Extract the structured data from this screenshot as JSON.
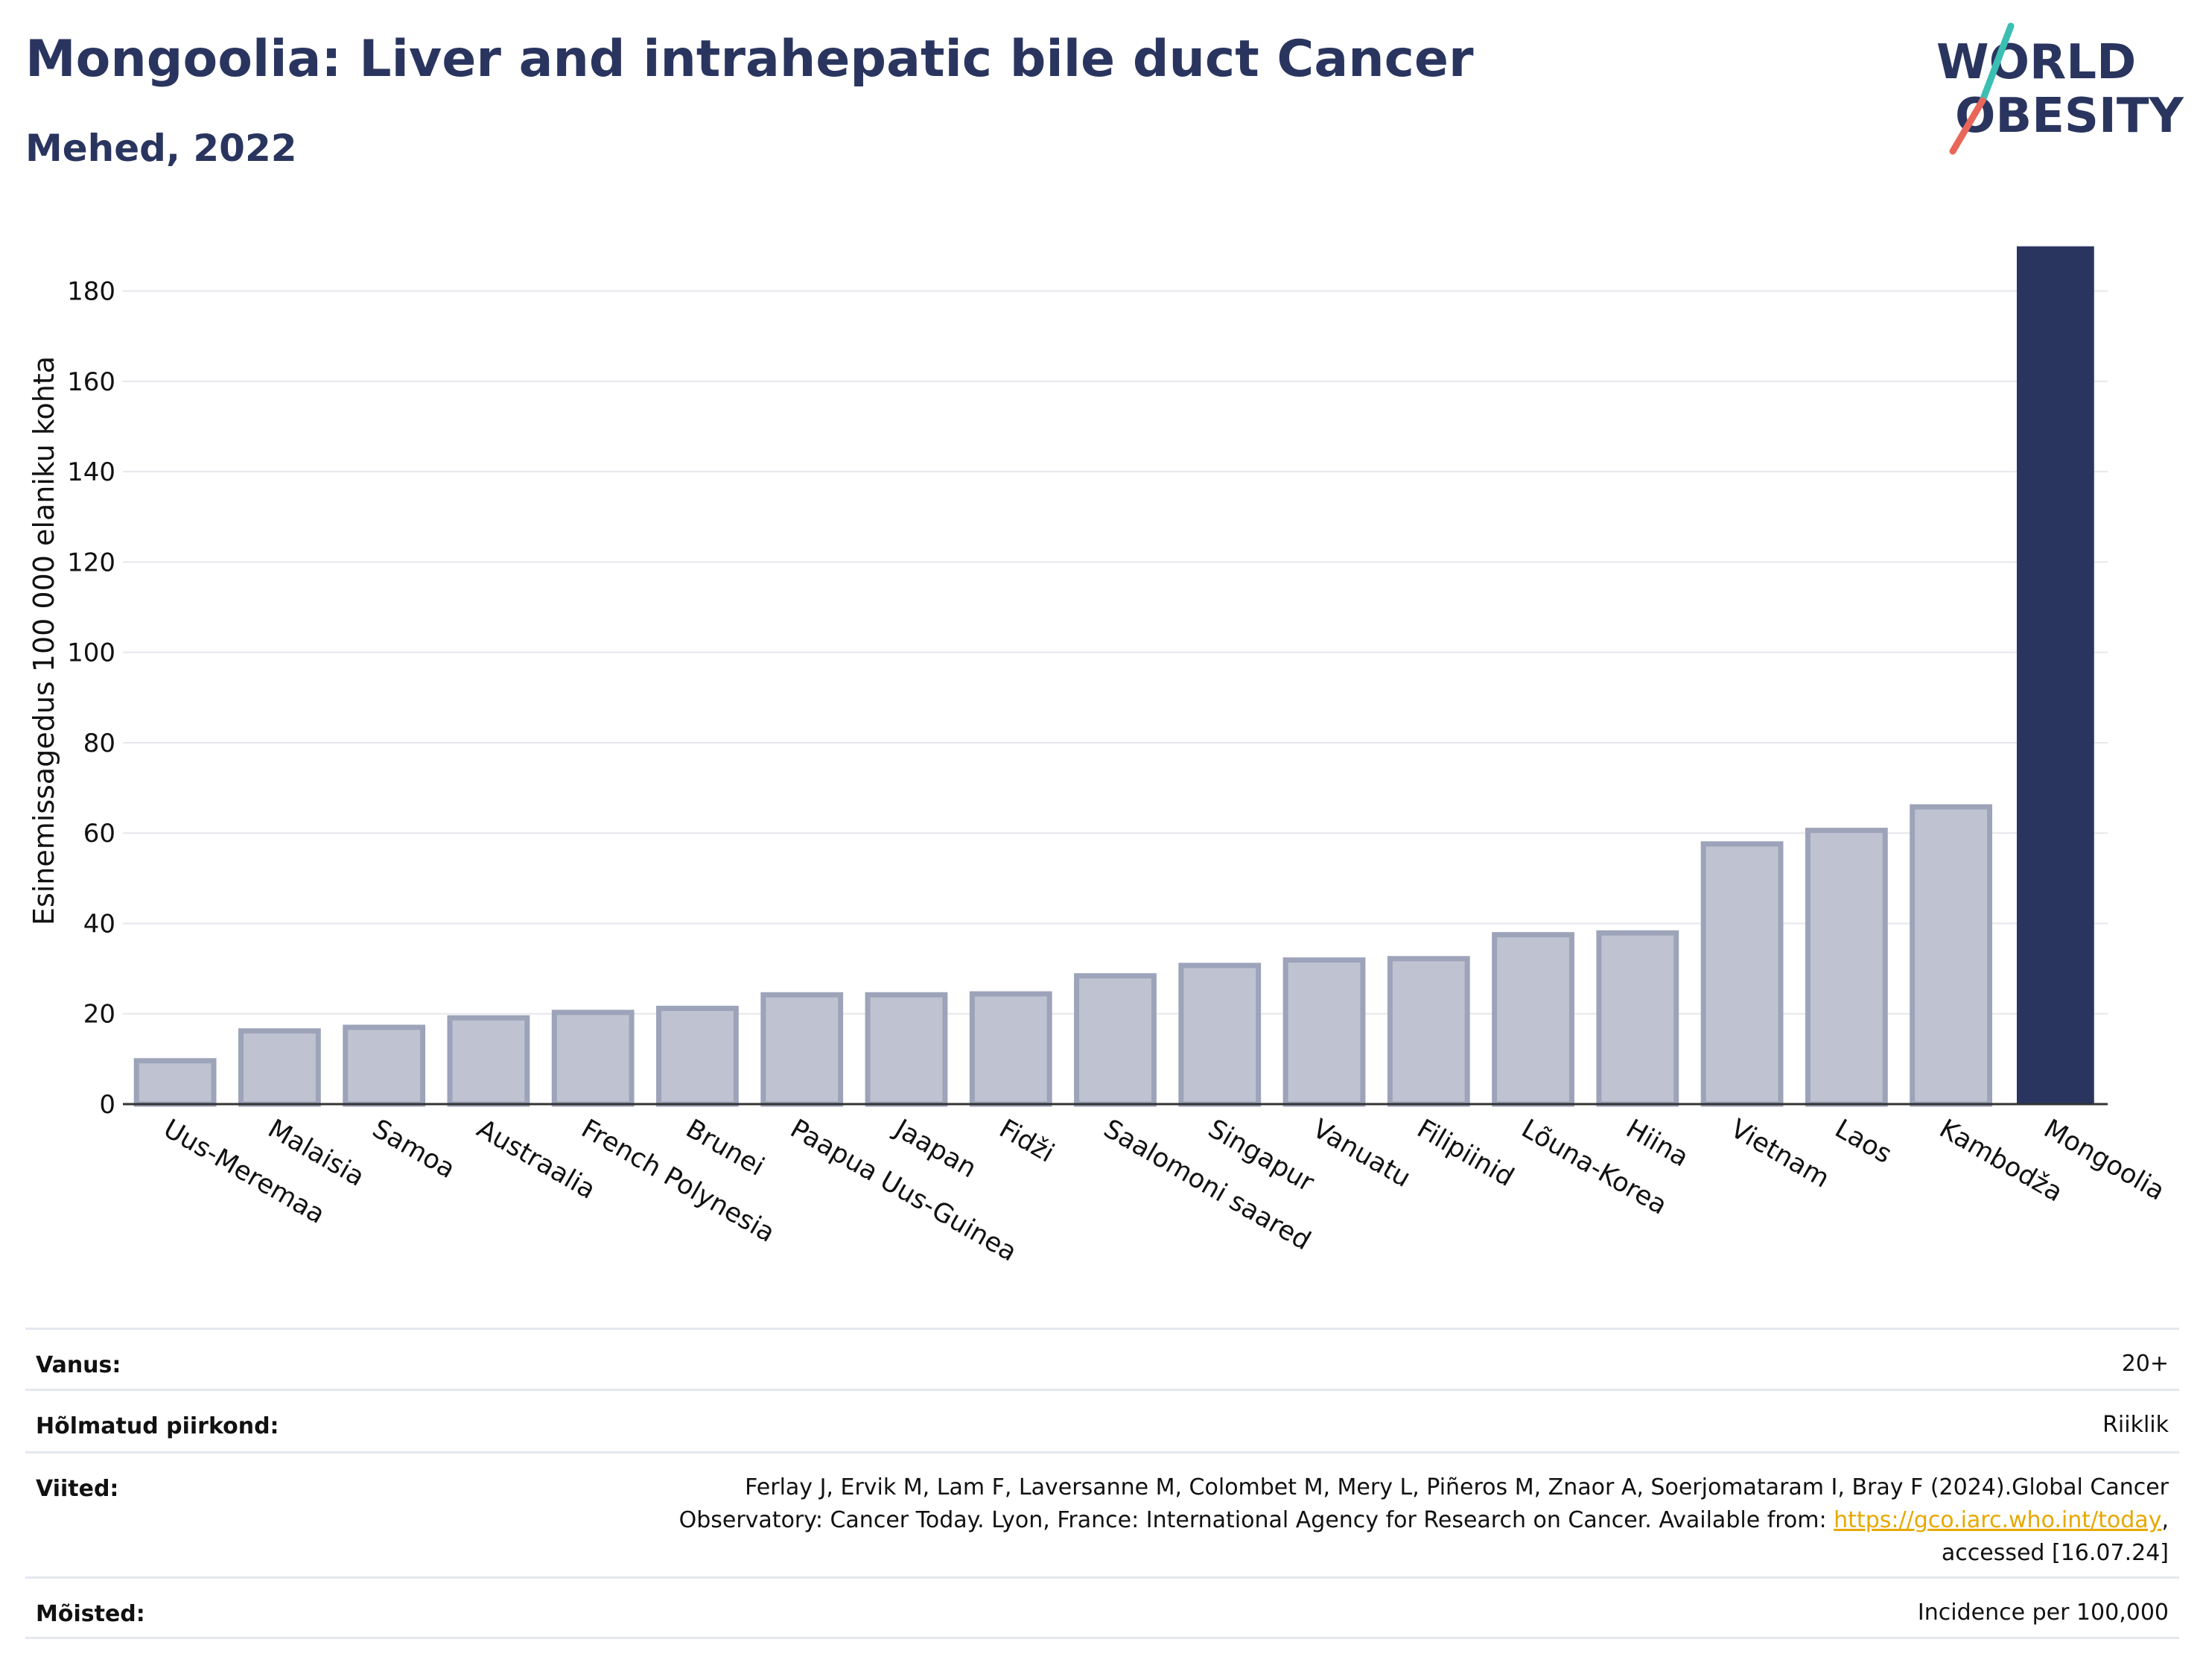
{
  "header": {
    "title": "Mongoolia: Liver and intrahepatic bile duct Cancer",
    "subtitle": "Mehed, 2022"
  },
  "logo": {
    "line1": "WORLD",
    "line2": "OBESITY",
    "text_color": "#2a355f",
    "slash_colors": [
      "#3bbfb2",
      "#e8675a"
    ]
  },
  "colors": {
    "bar": "#2a355f",
    "bar_muted": "#bfc3d1",
    "bar_muted_border": "#9da3b9",
    "grid": "#e6e6ec",
    "link": "#e6a800"
  },
  "chart_data": {
    "type": "bar",
    "categories": [
      "Uus-Meremaa",
      "Malaisia",
      "Samoa",
      "Austraalia",
      "French Polynesia",
      "Brunei",
      "Paapua Uus-Guinea",
      "Jaapan",
      "Fidži",
      "Saalomoni saared",
      "Singapur",
      "Vanuatu",
      "Filipiinid",
      "Lõuna-Korea",
      "Hiina",
      "Vietnam",
      "Laos",
      "Kambodža",
      "Mongoolia"
    ],
    "values": [
      9.6,
      16.2,
      17.0,
      19.1,
      20.3,
      21.2,
      24.2,
      24.2,
      24.4,
      28.4,
      30.7,
      31.9,
      32.2,
      37.5,
      37.9,
      57.6,
      60.6,
      65.8,
      189.9
    ],
    "highlight": "Mongoolia",
    "ylabel": "Esinemissagedus 100 000 elaniku kohta",
    "xlabel": "",
    "ylim": [
      0,
      190
    ],
    "yticks": [
      0,
      20,
      40,
      60,
      80,
      100,
      120,
      140,
      160,
      180
    ],
    "grid": true
  },
  "meta": [
    {
      "label": "Vanus:",
      "value": "20+"
    },
    {
      "label": "Hõlmatud piirkond:",
      "value": "Riiklik"
    },
    {
      "label": "Viited:",
      "line1": "Ferlay J, Ervik M, Lam F, Laversanne M, Colombet M, Mery L, Piñeros M, Znaor A, Soerjomataram I, Bray F (2024).Global Cancer",
      "line2_before": "Observatory: Cancer Today. Lyon, France: International Agency for Research on Cancer. Available from: ",
      "link": "https://gco.iarc.who.int/today",
      "line2_after": ",",
      "line3": "accessed [16.07.24]"
    },
    {
      "label": "Mõisted:",
      "value": "Incidence per 100,000"
    }
  ]
}
